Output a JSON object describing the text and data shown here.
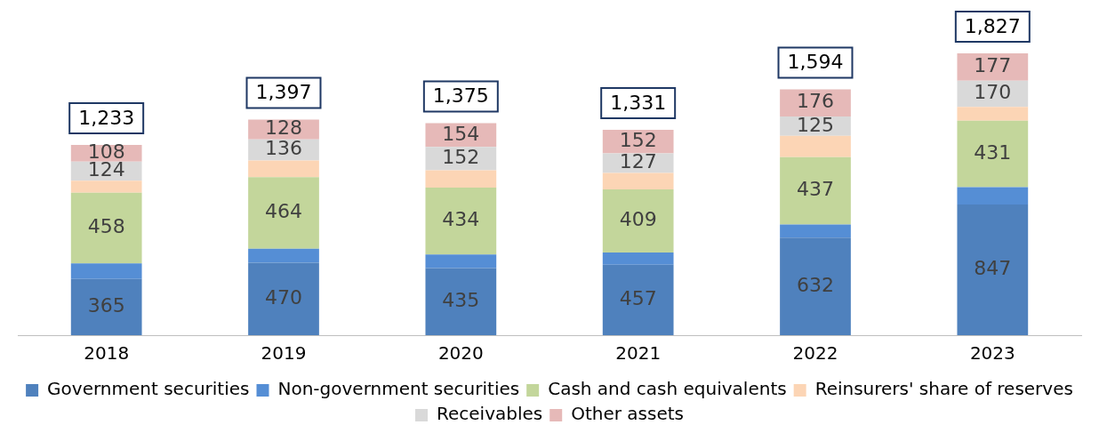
{
  "chart_data": {
    "type": "bar",
    "stacked": true,
    "categories": [
      "2018",
      "2019",
      "2020",
      "2021",
      "2022",
      "2023"
    ],
    "series": [
      {
        "name": "Government securities",
        "color": "#4f81bd",
        "values": [
          365,
          470,
          435,
          457,
          632,
          847
        ],
        "value_labels": [
          "365",
          "470",
          "435",
          "457",
          "632",
          "847"
        ]
      },
      {
        "name": "Non-government securities",
        "color": "#558ed5",
        "values": [
          100,
          90,
          88,
          79,
          85,
          112
        ],
        "value_labels": [
          null,
          null,
          null,
          null,
          null,
          null
        ]
      },
      {
        "name": "Cash and cash equivalents",
        "color": "#c3d69b",
        "values": [
          458,
          464,
          434,
          409,
          437,
          431
        ],
        "value_labels": [
          "458",
          "464",
          "434",
          "409",
          "437",
          "431"
        ]
      },
      {
        "name": "Reinsurers' share of reserves",
        "color": "#fcd5b5",
        "values": [
          78,
          109,
          112,
          107,
          139,
          90
        ],
        "value_labels": [
          null,
          null,
          null,
          null,
          null,
          null
        ]
      },
      {
        "name": "Receivables",
        "color": "#d9d9d9",
        "values": [
          124,
          136,
          152,
          127,
          125,
          170
        ],
        "value_labels": [
          "124",
          "136",
          "152",
          "127",
          "125",
          "170"
        ]
      },
      {
        "name": "Other assets",
        "color": "#e6b9b8",
        "values": [
          108,
          128,
          154,
          152,
          176,
          177
        ],
        "value_labels": [
          "108",
          "128",
          "154",
          "152",
          "176",
          "177"
        ]
      }
    ],
    "totals": [
      "1,233",
      "1,397",
      "1,375",
      "1,331",
      "1,594",
      "1,827"
    ],
    "grid": false,
    "legend": "bottom",
    "tick_labels": "x"
  }
}
